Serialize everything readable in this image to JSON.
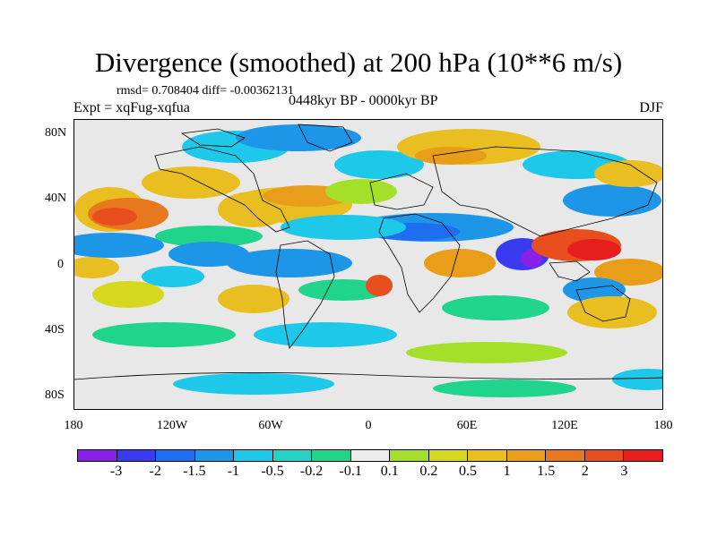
{
  "title": "Divergence (smoothed) at 200 hPa (10**6 m/s)",
  "stats": "rmsd= 0.708404 diff= -0.00362131",
  "expt": "Expt = xqFug-xqfua",
  "period": "0448kyr BP - 0000kyr BP",
  "season": "DJF",
  "lat_labels": [
    "80N",
    "40N",
    "0",
    "40S",
    "80S"
  ],
  "lon_labels": [
    "180",
    "120W",
    "60W",
    "0",
    "60E",
    "120E",
    "180"
  ],
  "colorbar": {
    "colors": [
      "#8a20e8",
      "#3a3af0",
      "#1e6ef0",
      "#1e96e8",
      "#1ec8e8",
      "#26d2c6",
      "#20d48c",
      "#ececec",
      "#a4e02a",
      "#d6d820",
      "#e8be20",
      "#e89e18",
      "#e8781e",
      "#e84e1e",
      "#e81e1e"
    ],
    "labels": [
      "-3",
      "-2",
      "-1.5",
      "-1",
      "-0.5",
      "-0.2",
      "-0.1",
      "0.1",
      "0.2",
      "0.5",
      "1",
      "1.5",
      "2",
      "3"
    ]
  }
}
